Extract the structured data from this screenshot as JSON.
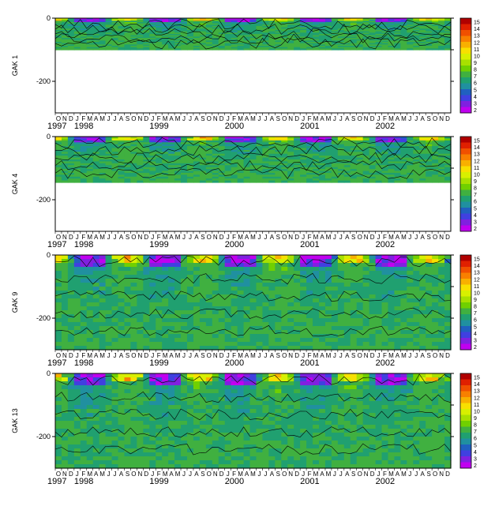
{
  "chart_data": {
    "type": "heatmap",
    "description_free": true,
    "time_axis": {
      "start": "1997-10",
      "end": "2002-12",
      "month_letters": [
        "O",
        "N",
        "D",
        "J",
        "F",
        "M",
        "A",
        "M",
        "J",
        "J",
        "A",
        "S",
        "O",
        "N",
        "D",
        "J",
        "F",
        "M",
        "A",
        "M",
        "J",
        "J",
        "A",
        "S",
        "O",
        "N",
        "D",
        "J",
        "F",
        "M",
        "A",
        "M",
        "J",
        "J",
        "A",
        "S",
        "O",
        "N",
        "D",
        "J",
        "F",
        "M",
        "A",
        "M",
        "J",
        "J",
        "A",
        "S",
        "O",
        "N",
        "D",
        "J",
        "F",
        "M",
        "A",
        "M",
        "J",
        "J",
        "A",
        "S",
        "O",
        "N",
        "D"
      ],
      "years": [
        "1997",
        "1998",
        "1999",
        "2000",
        "2001",
        "2002"
      ]
    },
    "depth_ticks": [
      "0",
      "-200"
    ],
    "colorbar": {
      "min": 2,
      "max": 15,
      "labels": [
        "15",
        "14",
        "13",
        "12",
        "11",
        "10",
        "9",
        "8",
        "7",
        "6",
        "5",
        "4",
        "3",
        "2"
      ],
      "colors": [
        "#b00000",
        "#e02000",
        "#f05000",
        "#f88000",
        "#f8b000",
        "#f8e000",
        "#d8f000",
        "#a8e000",
        "#70d000",
        "#40b040",
        "#20a070",
        "#2090a0",
        "#2060c0",
        "#4040e0",
        "#8020e0",
        "#c000f0"
      ]
    },
    "panels": [
      {
        "label": "GAK 1",
        "ylim": [
          -300,
          0
        ],
        "max_depth": -100
      },
      {
        "label": "GAK 4",
        "ylim": [
          -300,
          0
        ],
        "max_depth": -145
      },
      {
        "label": "GAK 9",
        "ylim": [
          -300,
          0
        ],
        "max_depth": -300
      },
      {
        "label": "GAK 13",
        "ylim": [
          -300,
          0
        ],
        "max_depth": -300
      }
    ]
  }
}
